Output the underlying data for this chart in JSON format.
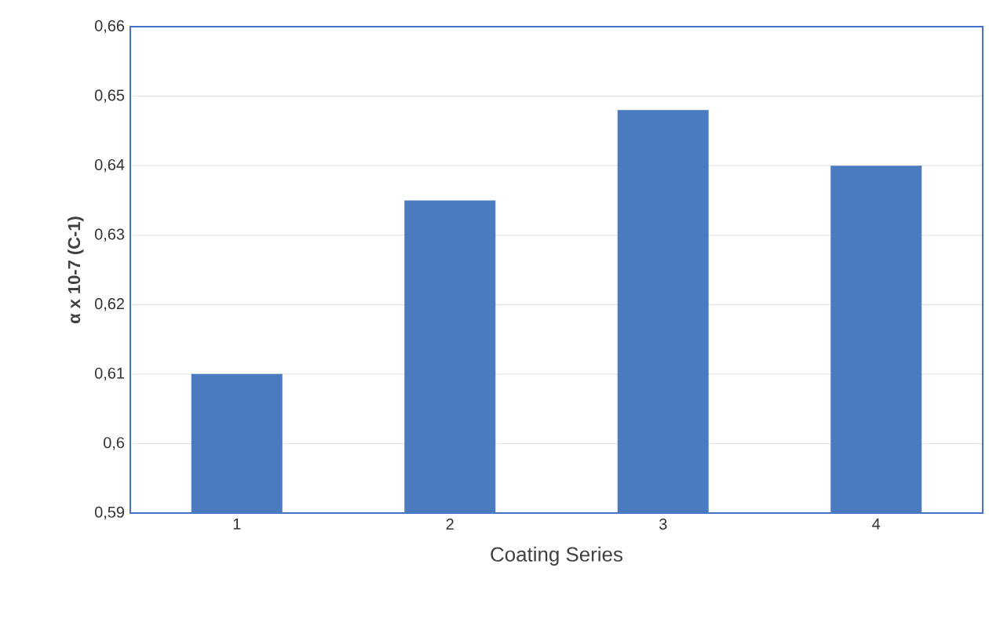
{
  "chart_data": {
    "type": "bar",
    "xlabel": "Coating Series",
    "ylabel": "α x 10-7 (C-1)",
    "categories": [
      "1",
      "2",
      "3",
      "4"
    ],
    "values": [
      0.61,
      0.635,
      0.648,
      0.64
    ],
    "color": "#4a7bc0",
    "ylim": [
      0.59,
      0.66
    ],
    "yticks": [
      {
        "value": 0.59,
        "label": "0,59"
      },
      {
        "value": 0.6,
        "label": "0,6"
      },
      {
        "value": 0.61,
        "label": "0,61"
      },
      {
        "value": 0.62,
        "label": "0,62"
      },
      {
        "value": 0.63,
        "label": "0,63"
      },
      {
        "value": 0.64,
        "label": "0,64"
      },
      {
        "value": 0.65,
        "label": "0,65"
      },
      {
        "value": 0.66,
        "label": "0,66"
      }
    ],
    "grid": "y"
  }
}
